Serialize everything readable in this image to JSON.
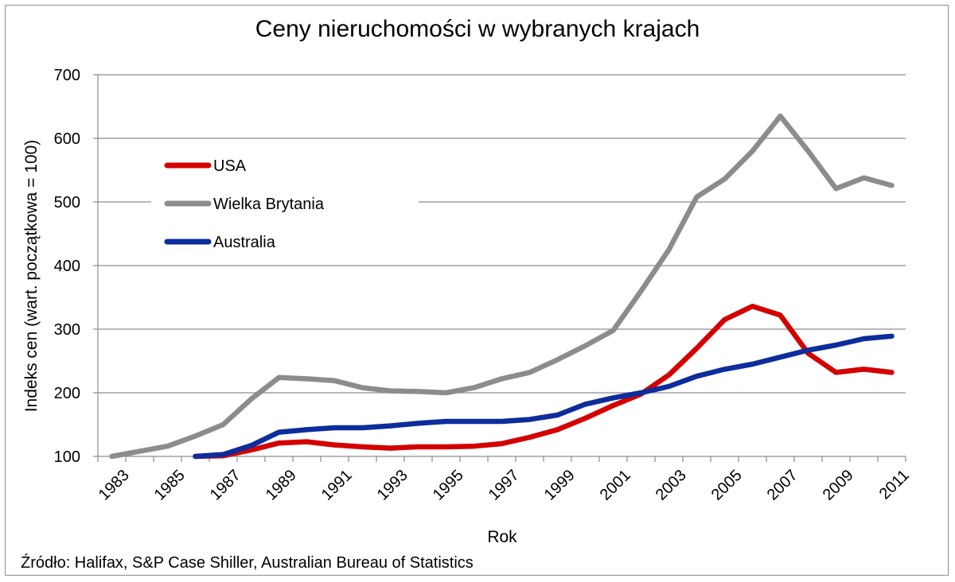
{
  "chart_data": {
    "type": "line",
    "title": "Ceny nieruchomości w wybranych krajach",
    "xlabel": "Rok",
    "ylabel": "Indeks cen (wart. początkowa = 100)",
    "ylim": [
      100,
      700
    ],
    "yticks": [
      "100",
      "200",
      "300",
      "400",
      "500",
      "600",
      "700"
    ],
    "x": [
      1983,
      1984,
      1985,
      1986,
      1987,
      1988,
      1989,
      1990,
      1991,
      1992,
      1993,
      1994,
      1995,
      1996,
      1997,
      1998,
      1999,
      2000,
      2001,
      2002,
      2003,
      2004,
      2005,
      2006,
      2007,
      2008,
      2009,
      2010,
      2011
    ],
    "xtick_labels": [
      "1983",
      "1985",
      "1987",
      "1989",
      "1991",
      "1993",
      "1995",
      "1997",
      "1999",
      "2001",
      "2003",
      "2005",
      "2007",
      "2009",
      "2011"
    ],
    "grid": "horizontal",
    "legend_position": "upper-left inside",
    "series": [
      {
        "name": "USA",
        "color": "#d40000",
        "values": [
          null,
          null,
          null,
          100,
          101,
          110,
          121,
          123,
          118,
          115,
          113,
          115,
          115,
          116,
          120,
          130,
          142,
          160,
          180,
          198,
          228,
          270,
          315,
          336,
          322,
          262,
          232,
          237,
          232
        ]
      },
      {
        "name": "Wielka Brytania",
        "color": "#8c8c8c",
        "values": [
          100,
          108,
          116,
          132,
          150,
          190,
          224,
          222,
          219,
          208,
          203,
          202,
          200,
          208,
          222,
          232,
          252,
          274,
          298,
          360,
          425,
          508,
          536,
          580,
          635,
          580,
          521,
          538,
          526
        ]
      },
      {
        "name": "Australia",
        "color": "#0d2d9c",
        "values": [
          null,
          null,
          null,
          100,
          103,
          117,
          138,
          142,
          145,
          145,
          148,
          152,
          155,
          155,
          155,
          158,
          165,
          182,
          192,
          200,
          210,
          226,
          237,
          245,
          256,
          267,
          275,
          285,
          289
        ]
      }
    ]
  },
  "source_text": "Źródło: Halifax, S&P Case Shiller, Australian Bureau of Statistics"
}
